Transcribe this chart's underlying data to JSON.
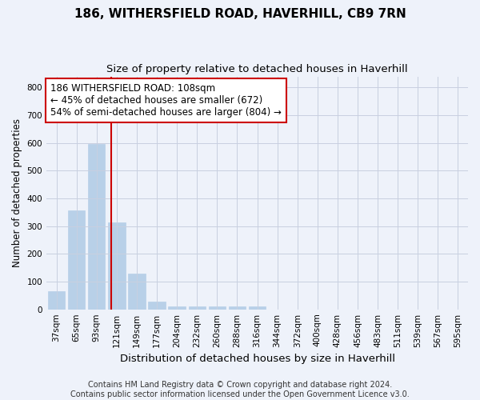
{
  "title": "186, WITHERSFIELD ROAD, HAVERHILL, CB9 7RN",
  "subtitle": "Size of property relative to detached houses in Haverhill",
  "xlabel": "Distribution of detached houses by size in Haverhill",
  "ylabel": "Number of detached properties",
  "categories": [
    "37sqm",
    "65sqm",
    "93sqm",
    "121sqm",
    "149sqm",
    "177sqm",
    "204sqm",
    "232sqm",
    "260sqm",
    "288sqm",
    "316sqm",
    "344sqm",
    "372sqm",
    "400sqm",
    "428sqm",
    "456sqm",
    "483sqm",
    "511sqm",
    "539sqm",
    "567sqm",
    "595sqm"
  ],
  "values": [
    65,
    358,
    595,
    315,
    130,
    28,
    10,
    10,
    10,
    10,
    10,
    0,
    0,
    0,
    0,
    0,
    0,
    0,
    0,
    0,
    0
  ],
  "bar_color": "#b8d0e8",
  "bar_edgecolor": "#b8d0e8",
  "vline_x": 2.72,
  "vline_color": "#cc0000",
  "annotation_text": "186 WITHERSFIELD ROAD: 108sqm\n← 45% of detached houses are smaller (672)\n54% of semi-detached houses are larger (804) →",
  "annotation_box_color": "white",
  "annotation_box_edgecolor": "#cc0000",
  "annotation_fontsize": 8.5,
  "ylim": [
    0,
    840
  ],
  "yticks": [
    0,
    100,
    200,
    300,
    400,
    500,
    600,
    700,
    800
  ],
  "title_fontsize": 11,
  "subtitle_fontsize": 9.5,
  "xlabel_fontsize": 9.5,
  "ylabel_fontsize": 8.5,
  "tick_fontsize": 7.5,
  "footer_line1": "Contains HM Land Registry data © Crown copyright and database right 2024.",
  "footer_line2": "Contains public sector information licensed under the Open Government Licence v3.0.",
  "footer_fontsize": 7,
  "bg_color": "#eef2fa",
  "plot_bg_color": "#eef2fa",
  "grid_color": "#c8cfe0"
}
